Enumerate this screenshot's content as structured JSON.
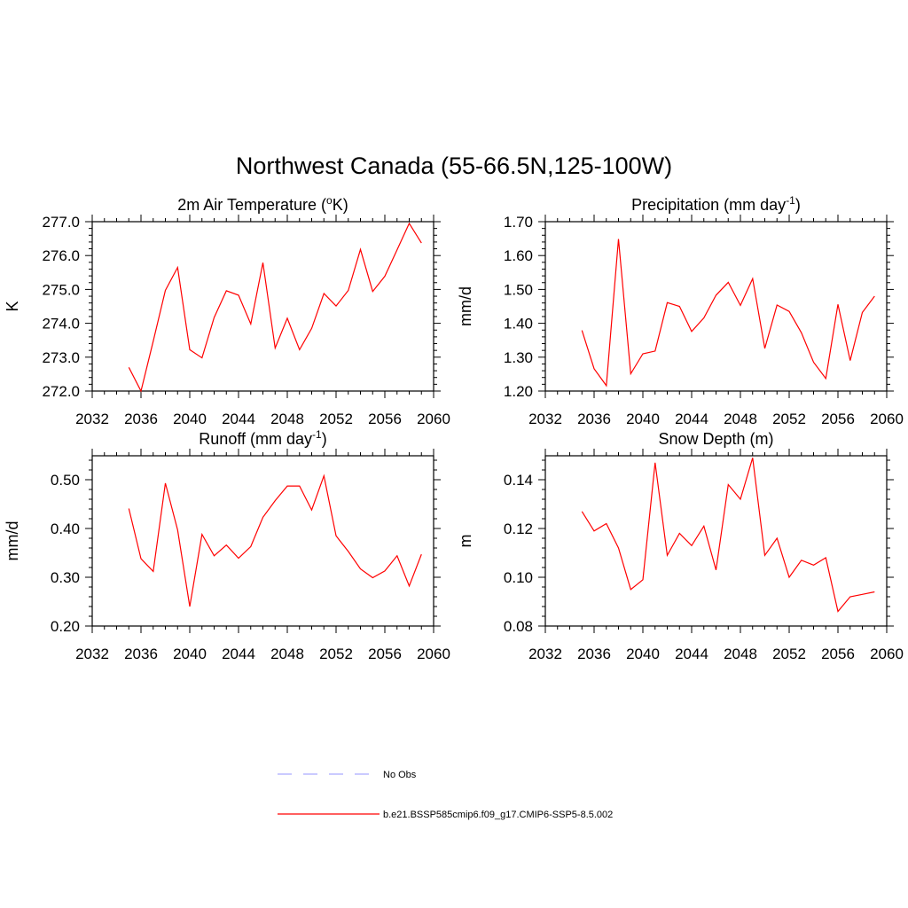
{
  "title": "Northwest Canada (55-66.5N,125-100W)",
  "colors": {
    "model": "#ff0000",
    "obs": "#aaaaff",
    "axis": "#000000"
  },
  "legend": {
    "placement": "bottom-center",
    "entries": [
      {
        "label": "No Obs",
        "style": "dashed",
        "color": "#aaaaff"
      },
      {
        "label": "b.e21.BSSP585cmip6.f09_g17.CMIP6-SSP5-8.5.002",
        "style": "solid",
        "color": "#ff0000"
      }
    ]
  },
  "chart_data": [
    {
      "type": "line",
      "title": "2m Air Temperature (",
      "title_sup": "o",
      "title_tail": "K)",
      "ylabel": "K",
      "xlim": [
        2032,
        2060
      ],
      "xticks": [
        "2032",
        "2036",
        "2040",
        "2044",
        "2048",
        "2052",
        "2056",
        "2060"
      ],
      "ylim": [
        272.0,
        277.0
      ],
      "yticks": [
        "272.0",
        "273.0",
        "274.0",
        "275.0",
        "276.0",
        "277.0"
      ],
      "x": [
        2035,
        2036,
        2037,
        2038,
        2039,
        2040,
        2041,
        2042,
        2043,
        2044,
        2045,
        2046,
        2047,
        2048,
        2049,
        2050,
        2051,
        2052,
        2053,
        2054,
        2055,
        2056,
        2057,
        2058,
        2059
      ],
      "series": [
        {
          "values": [
            272.7,
            272.0,
            273.47,
            274.97,
            275.65,
            273.22,
            272.98,
            274.17,
            274.96,
            274.83,
            273.98,
            275.79,
            273.27,
            274.15,
            273.22,
            273.85,
            274.88,
            274.51,
            274.97,
            276.18,
            274.94,
            275.39,
            276.17,
            276.95,
            276.37
          ]
        }
      ]
    },
    {
      "type": "line",
      "title": "Precipitation (mm day",
      "title_sup": "-1",
      "title_tail": ")",
      "ylabel": "mm/d",
      "xlim": [
        2032,
        2060
      ],
      "xticks": [
        "2032",
        "2036",
        "2040",
        "2044",
        "2048",
        "2052",
        "2056",
        "2060"
      ],
      "ylim": [
        1.2,
        1.7
      ],
      "yticks": [
        "1.20",
        "1.30",
        "1.40",
        "1.50",
        "1.60",
        "1.70"
      ],
      "x": [
        2035,
        2036,
        2037,
        2038,
        2039,
        2040,
        2041,
        2042,
        2043,
        2044,
        2045,
        2046,
        2047,
        2048,
        2049,
        2050,
        2051,
        2052,
        2053,
        2054,
        2055,
        2056,
        2057,
        2058,
        2059
      ],
      "series": [
        {
          "values": [
            1.379,
            1.266,
            1.216,
            1.649,
            1.251,
            1.31,
            1.318,
            1.461,
            1.45,
            1.376,
            1.416,
            1.483,
            1.521,
            1.453,
            1.532,
            1.326,
            1.454,
            1.435,
            1.372,
            1.285,
            1.237,
            1.456,
            1.29,
            1.432,
            1.48
          ]
        }
      ]
    },
    {
      "type": "line",
      "title": "Runoff (mm day",
      "title_sup": "-1",
      "title_tail": ")",
      "ylabel": "mm/d",
      "xlim": [
        2032,
        2060
      ],
      "xticks": [
        "2032",
        "2036",
        "2040",
        "2044",
        "2048",
        "2052",
        "2056",
        "2060"
      ],
      "ylim": [
        0.2,
        0.55
      ],
      "yticks": [
        "0.20",
        "0.30",
        "0.40",
        "0.50"
      ],
      "ytick_values": [
        0.2,
        0.3,
        0.4,
        0.5
      ],
      "x": [
        2035,
        2036,
        2037,
        2038,
        2039,
        2040,
        2041,
        2042,
        2043,
        2044,
        2045,
        2046,
        2047,
        2048,
        2049,
        2050,
        2051,
        2052,
        2053,
        2054,
        2055,
        2056,
        2057,
        2058,
        2059
      ],
      "series": [
        {
          "values": [
            0.441,
            0.338,
            0.312,
            0.493,
            0.397,
            0.24,
            0.388,
            0.344,
            0.366,
            0.339,
            0.363,
            0.423,
            0.457,
            0.487,
            0.487,
            0.438,
            0.508,
            0.385,
            0.353,
            0.317,
            0.299,
            0.313,
            0.344,
            0.282,
            0.347
          ]
        }
      ]
    },
    {
      "type": "line",
      "title": "Snow Depth (m)",
      "title_sup": "",
      "title_tail": "",
      "ylabel": "m",
      "xlim": [
        2032,
        2060
      ],
      "xticks": [
        "2032",
        "2036",
        "2040",
        "2044",
        "2048",
        "2052",
        "2056",
        "2060"
      ],
      "ylim": [
        0.08,
        0.15
      ],
      "yticks": [
        "0.08",
        "0.10",
        "0.12",
        "0.14"
      ],
      "ytick_values": [
        0.08,
        0.1,
        0.12,
        0.14
      ],
      "x": [
        2035,
        2036,
        2037,
        2038,
        2039,
        2040,
        2041,
        2042,
        2043,
        2044,
        2045,
        2046,
        2047,
        2048,
        2049,
        2050,
        2051,
        2052,
        2053,
        2054,
        2055,
        2056,
        2057,
        2058,
        2059
      ],
      "series": [
        {
          "values": [
            0.127,
            0.119,
            0.122,
            0.112,
            0.095,
            0.099,
            0.147,
            0.109,
            0.118,
            0.113,
            0.121,
            0.103,
            0.138,
            0.132,
            0.149,
            0.109,
            0.116,
            0.1,
            0.107,
            0.105,
            0.108,
            0.086,
            0.092,
            0.093,
            0.094
          ]
        }
      ]
    }
  ]
}
